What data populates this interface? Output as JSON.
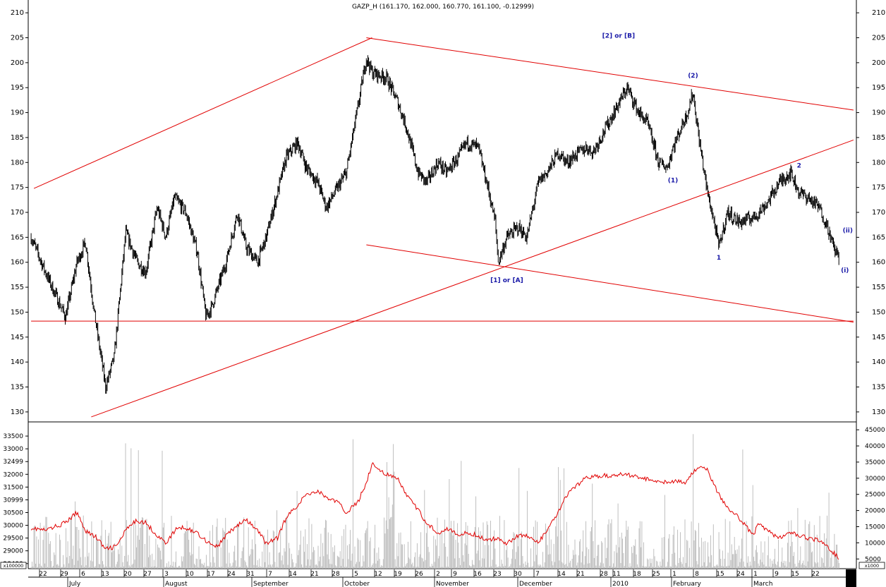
{
  "chart_data": [
    {
      "type": "line",
      "title": "GAZP_H (161.170, 162.000, 160.770, 161.100, -0.12999)",
      "subtype": "price (high-low bars)",
      "ylim": [
        128,
        212
      ],
      "y_ticks": [
        130,
        135,
        140,
        145,
        150,
        155,
        160,
        165,
        170,
        175,
        180,
        185,
        190,
        195,
        200,
        205,
        210
      ],
      "grid": false,
      "series": [
        {
          "x": [
            "2009-06-17",
            "2009-06-22",
            "2009-06-29",
            "2009-07-03",
            "2009-07-06",
            "2009-07-09",
            "2009-07-13",
            "2009-07-16",
            "2009-07-20",
            "2009-07-24",
            "2009-07-27",
            "2009-07-31",
            "2009-08-03",
            "2009-08-06",
            "2009-08-10",
            "2009-08-14",
            "2009-08-17",
            "2009-08-19",
            "2009-08-24",
            "2009-08-28",
            "2009-08-31",
            "2009-09-04",
            "2009-09-07",
            "2009-09-11",
            "2009-09-14",
            "2009-09-18",
            "2009-09-21",
            "2009-09-25",
            "2009-09-28",
            "2009-10-02",
            "2009-10-05",
            "2009-10-09",
            "2009-10-12",
            "2009-10-14",
            "2009-10-19",
            "2009-10-23",
            "2009-10-26",
            "2009-10-30",
            "2009-11-02",
            "2009-11-06",
            "2009-11-09",
            "2009-11-13",
            "2009-11-16",
            "2009-11-20",
            "2009-11-23",
            "2009-11-26",
            "2009-11-27",
            "2009-11-30",
            "2009-12-04",
            "2009-12-07",
            "2009-12-11",
            "2009-12-14",
            "2009-12-18",
            "2009-12-21",
            "2009-12-25",
            "2009-12-28",
            "2009-12-30",
            "2010-01-11",
            "2010-01-15",
            "2010-01-18",
            "2010-01-22",
            "2010-01-25",
            "2010-01-27",
            "2010-02-01",
            "2010-02-03",
            "2010-02-05",
            "2010-02-08",
            "2010-02-10",
            "2010-02-12",
            "2010-02-15",
            "2010-02-19",
            "2010-02-24",
            "2010-02-26",
            "2010-03-01",
            "2010-03-05",
            "2010-03-09",
            "2010-03-12",
            "2010-03-15",
            "2010-03-19",
            "2010-03-22",
            "2010-03-24",
            "2010-03-26"
          ],
          "values": [
            165,
            158,
            149,
            160,
            164,
            150,
            135,
            141,
            166,
            160,
            158,
            171,
            165,
            173,
            170,
            162,
            149,
            151,
            160,
            170,
            163,
            160,
            165,
            174,
            181,
            184,
            179,
            176,
            171,
            175,
            178,
            191,
            201,
            198,
            197,
            192,
            187,
            178,
            176,
            180,
            178,
            181,
            184,
            183,
            176,
            168,
            160,
            165,
            167,
            165,
            176,
            178,
            182,
            180,
            182,
            183,
            182,
            195,
            190,
            188,
            180,
            179,
            183,
            190,
            194,
            185,
            174,
            169,
            163,
            170,
            168,
            169,
            170,
            172,
            176,
            178,
            174,
            173,
            171,
            167,
            163,
            161
          ]
        }
      ],
      "x_axis": {
        "day_labels": [
          "22",
          "29",
          "6",
          "13",
          "20",
          "27",
          "3",
          "10",
          "17",
          "24",
          "31",
          "7",
          "14",
          "21",
          "28",
          "5",
          "12",
          "19",
          "26",
          "2",
          "9",
          "16",
          "23",
          "30",
          "7",
          "14",
          "21",
          "28",
          "11",
          "18",
          "25",
          "1",
          "8",
          "15",
          "24",
          "1",
          "9",
          "15",
          "22"
        ],
        "month_labels": [
          "July",
          "August",
          "September",
          "October",
          "November",
          "December",
          "2010",
          "February",
          "March"
        ]
      },
      "annotations": [
        {
          "text": "[2] or [B]",
          "x": "2010-01-08",
          "y": 205
        },
        {
          "text": "(2)",
          "x": "2010-02-03",
          "y": 197
        },
        {
          "text": "(1)",
          "x": "2010-01-27",
          "y": 176
        },
        {
          "text": "2",
          "x": "2010-03-12",
          "y": 179
        },
        {
          "text": "(ii)",
          "x": "2010-03-29",
          "y": 166
        },
        {
          "text": "1",
          "x": "2010-02-12",
          "y": 160.5
        },
        {
          "text": "(i)",
          "x": "2010-03-28",
          "y": 158
        },
        {
          "text": "[1] or [A]",
          "x": "2009-11-30",
          "y": 156
        }
      ],
      "trendlines": [
        {
          "from": [
            "2009-06-18",
            174.8
          ],
          "to": [
            "2009-10-14",
            205
          ]
        },
        {
          "from": [
            "2009-10-12",
            205
          ],
          "to": [
            "2010-03-31",
            190.5
          ]
        },
        {
          "from": [
            "2009-07-08",
            129
          ],
          "to": [
            "2010-03-31",
            184.5
          ]
        },
        {
          "from": [
            "2009-10-12",
            163.5
          ],
          "to": [
            "2010-03-31",
            148
          ]
        },
        {
          "from": [
            "2009-06-17",
            148.2
          ],
          "to": [
            "2010-03-31",
            148.2
          ]
        }
      ]
    },
    {
      "type": "bar",
      "title": "",
      "ylim_left": [
        28300,
        34000
      ],
      "y_ticks_left": [
        "33500",
        "33000",
        "32499",
        "32000",
        "31500",
        "30999",
        "30500",
        "30000",
        "29500",
        "29000",
        "28499"
      ],
      "left_scale_label": "x100000",
      "ylim_right": [
        2000,
        47000
      ],
      "y_ticks_right": [
        "45000",
        "40000",
        "35000",
        "30000",
        "25000",
        "20000",
        "15000",
        "10000",
        "5000"
      ],
      "right_scale_label": "x1000",
      "series": [
        {
          "name": "",
          "style": "red line (left axis)",
          "x": [
            "2009-06-17",
            "2009-06-22",
            "2009-06-29",
            "2009-07-03",
            "2009-07-06",
            "2009-07-10",
            "2009-07-13",
            "2009-07-17",
            "2009-07-20",
            "2009-07-24",
            "2009-07-27",
            "2009-07-31",
            "2009-08-03",
            "2009-08-07",
            "2009-08-10",
            "2009-08-14",
            "2009-08-17",
            "2009-08-21",
            "2009-08-24",
            "2009-08-28",
            "2009-08-31",
            "2009-09-04",
            "2009-09-07",
            "2009-09-11",
            "2009-09-14",
            "2009-09-18",
            "2009-09-21",
            "2009-09-25",
            "2009-09-28",
            "2009-10-02",
            "2009-10-05",
            "2009-10-09",
            "2009-10-12",
            "2009-10-14",
            "2009-10-19",
            "2009-10-23",
            "2009-10-26",
            "2009-10-30",
            "2009-11-02",
            "2009-11-06",
            "2009-11-09",
            "2009-11-13",
            "2009-11-16",
            "2009-11-20",
            "2009-11-23",
            "2009-11-27",
            "2009-11-30",
            "2009-12-04",
            "2009-12-07",
            "2009-12-11",
            "2009-12-14",
            "2009-12-18",
            "2009-12-21",
            "2009-12-28",
            "2010-01-11",
            "2010-01-18",
            "2010-01-25",
            "2010-02-01",
            "2010-02-03",
            "2010-02-05",
            "2010-02-08",
            "2010-02-12",
            "2010-02-15",
            "2010-02-19",
            "2010-02-24",
            "2010-02-26",
            "2010-03-01",
            "2010-03-05",
            "2010-03-09",
            "2010-03-12",
            "2010-03-15",
            "2010-03-19",
            "2010-03-22",
            "2010-03-26"
          ],
          "values": [
            29900,
            29800,
            30100,
            30500,
            29800,
            29500,
            29050,
            29200,
            29800,
            30200,
            30100,
            29600,
            29300,
            29900,
            29900,
            29700,
            29400,
            29150,
            29600,
            30000,
            30200,
            29800,
            29300,
            29500,
            30300,
            30800,
            31200,
            31350,
            31100,
            30900,
            30500,
            30900,
            31700,
            32400,
            32000,
            31800,
            31200,
            30600,
            30100,
            29700,
            29900,
            29600,
            29700,
            29600,
            29400,
            29500,
            29300,
            29600,
            29600,
            29300,
            29800,
            30500,
            31200,
            31900,
            32000,
            31800,
            31700,
            31700,
            32100,
            32300,
            32150,
            31200,
            30700,
            30300,
            29600,
            30100,
            29800,
            29500,
            29700,
            29600,
            29500,
            29400,
            29150,
            28700
          ]
        },
        {
          "name": "",
          "style": "grey volume bars (right axis)",
          "description": "dense daily volume bars, typical range 3000-20000, spikes up to ~45000"
        }
      ]
    }
  ]
}
